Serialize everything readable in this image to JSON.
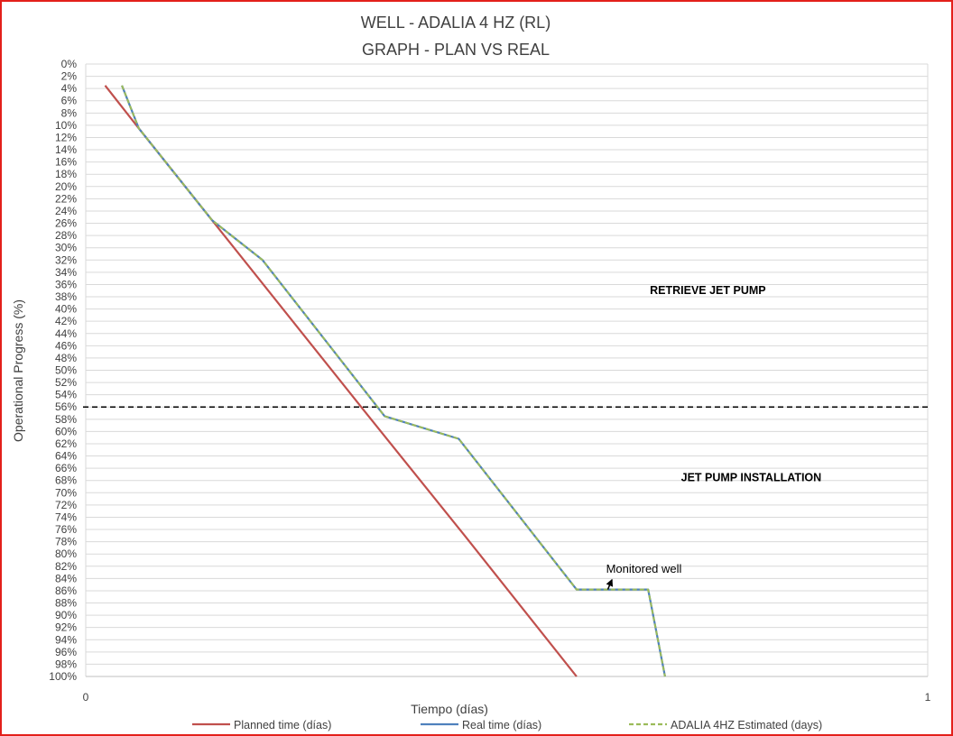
{
  "chart_data": {
    "type": "line",
    "title": [
      "WELL -  ADALIA 4 HZ (RL)",
      "GRAPH  - PLAN VS REAL"
    ],
    "xlabel": "Tiempo (días)",
    "ylabel": "Operational Progress (%)",
    "xlim": [
      0,
      1
    ],
    "ylim": [
      0,
      100
    ],
    "y_inverted": true,
    "x_ticks": [
      "0",
      "1"
    ],
    "y_ticks": [
      "0%",
      "2%",
      "4%",
      "6%",
      "8%",
      "10%",
      "12%",
      "14%",
      "16%",
      "18%",
      "20%",
      "22%",
      "24%",
      "26%",
      "28%",
      "30%",
      "32%",
      "34%",
      "36%",
      "38%",
      "40%",
      "42%",
      "44%",
      "46%",
      "48%",
      "50%",
      "52%",
      "54%",
      "56%",
      "58%",
      "60%",
      "62%",
      "64%",
      "66%",
      "68%",
      "70%",
      "72%",
      "74%",
      "76%",
      "78%",
      "80%",
      "82%",
      "84%",
      "86%",
      "88%",
      "90%",
      "92%",
      "94%",
      "96%",
      "98%",
      "100%"
    ],
    "grid": "horizontal",
    "legend_position": "bottom",
    "series": [
      {
        "name": "Planned time (días)",
        "color": "#c0504d",
        "style": "solid",
        "points": [
          [
            0.023,
            3.5
          ],
          [
            0.063,
            10.5
          ],
          [
            0.15,
            25.5
          ],
          [
            0.33,
            56.5
          ],
          [
            0.45,
            77
          ],
          [
            0.583,
            100
          ]
        ]
      },
      {
        "name": "Real time (días)",
        "color": "#4f81bd",
        "style": "solid",
        "points": [
          [
            0.043,
            3.5
          ],
          [
            0.063,
            10.5
          ],
          [
            0.15,
            25.5
          ],
          [
            0.21,
            32
          ],
          [
            0.355,
            57.5
          ],
          [
            0.443,
            61.2
          ],
          [
            0.583,
            85.8
          ],
          [
            0.668,
            85.8
          ],
          [
            0.688,
            100
          ]
        ]
      },
      {
        "name": "ADALIA 4HZ Estimated (days)",
        "color": "#9bbb59",
        "style": "dashed",
        "points": [
          [
            0.043,
            3.5
          ],
          [
            0.063,
            10.5
          ],
          [
            0.15,
            25.5
          ],
          [
            0.21,
            32
          ],
          [
            0.355,
            57.5
          ],
          [
            0.443,
            61.2
          ],
          [
            0.583,
            85.8
          ],
          [
            0.668,
            85.8
          ],
          [
            0.688,
            100
          ]
        ]
      }
    ],
    "reference_line": {
      "y": 56,
      "style": "dashed",
      "color": "#000000"
    },
    "annotations": [
      {
        "text": "RETRIEVE JET PUMP",
        "x": 0.67,
        "y": 37
      },
      {
        "text": "JET PUMP INSTALLATION",
        "x": 0.707,
        "y": 67.5
      },
      {
        "text": "Monitored well",
        "x": 0.618,
        "y": 82.5,
        "arrow_to": [
          0.625,
          84.2
        ],
        "arrow_from": [
          0.62,
          85.8
        ]
      }
    ]
  }
}
